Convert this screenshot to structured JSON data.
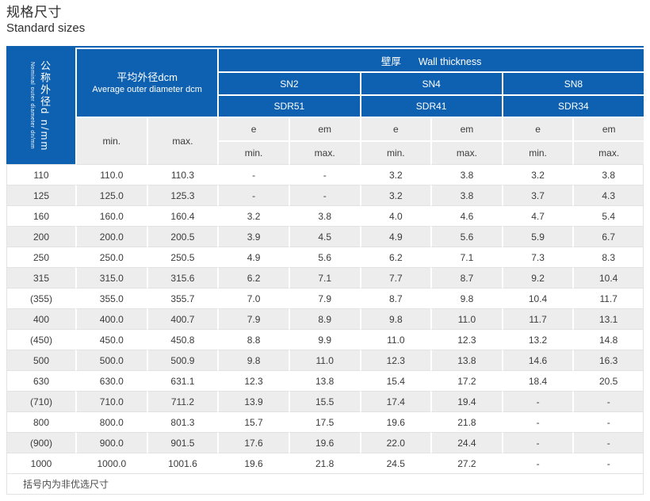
{
  "page": {
    "title_zh": "规格尺寸",
    "title_en": "Standard sizes"
  },
  "colors": {
    "header_blue": "#0e61b0",
    "subheader_gray": "#ededed",
    "row_alt_gray": "#ededed",
    "text_dark": "#3b3b3b"
  },
  "table": {
    "col1_header_zh": "公称外径d n/mm",
    "col1_header_en": "Nominal outer diameter dn/mm",
    "avg_header_zh": "平均外径dcm",
    "avg_header_en": "Average outer diameter dcm",
    "wall_header_zh": "壁厚",
    "wall_header_en": "Wall thickness",
    "sn_groups": [
      {
        "sn": "SN2",
        "sdr": "SDR51"
      },
      {
        "sn": "SN4",
        "sdr": "SDR41"
      },
      {
        "sn": "SN8",
        "sdr": "SDR34"
      }
    ],
    "sub_e": "e",
    "sub_em": "em",
    "min_label": "min.",
    "max_label": "max.",
    "rows": [
      [
        "110",
        "110.0",
        "110.3",
        "-",
        "-",
        "3.2",
        "3.8",
        "3.2",
        "3.8"
      ],
      [
        "125",
        "125.0",
        "125.3",
        "-",
        "-",
        "3.2",
        "3.8",
        "3.7",
        "4.3"
      ],
      [
        "160",
        "160.0",
        "160.4",
        "3.2",
        "3.8",
        "4.0",
        "4.6",
        "4.7",
        "5.4"
      ],
      [
        "200",
        "200.0",
        "200.5",
        "3.9",
        "4.5",
        "4.9",
        "5.6",
        "5.9",
        "6.7"
      ],
      [
        "250",
        "250.0",
        "250.5",
        "4.9",
        "5.6",
        "6.2",
        "7.1",
        "7.3",
        "8.3"
      ],
      [
        "315",
        "315.0",
        "315.6",
        "6.2",
        "7.1",
        "7.7",
        "8.7",
        "9.2",
        "10.4"
      ],
      [
        "(355)",
        "355.0",
        "355.7",
        "7.0",
        "7.9",
        "8.7",
        "9.8",
        "10.4",
        "11.7"
      ],
      [
        "400",
        "400.0",
        "400.7",
        "7.9",
        "8.9",
        "9.8",
        "11.0",
        "11.7",
        "13.1"
      ],
      [
        "(450)",
        "450.0",
        "450.8",
        "8.8",
        "9.9",
        "11.0",
        "12.3",
        "13.2",
        "14.8"
      ],
      [
        "500",
        "500.0",
        "500.9",
        "9.8",
        "11.0",
        "12.3",
        "13.8",
        "14.6",
        "16.3"
      ],
      [
        "630",
        "630.0",
        "631.1",
        "12.3",
        "13.8",
        "15.4",
        "17.2",
        "18.4",
        "20.5"
      ],
      [
        "(710)",
        "710.0",
        "711.2",
        "13.9",
        "15.5",
        "17.4",
        "19.4",
        "-",
        "-"
      ],
      [
        "800",
        "800.0",
        "801.3",
        "15.7",
        "17.5",
        "19.6",
        "21.8",
        "-",
        "-"
      ],
      [
        "(900)",
        "900.0",
        "901.5",
        "17.6",
        "19.6",
        "22.0",
        "24.4",
        "-",
        "-"
      ],
      [
        "1000",
        "1000.0",
        "1001.6",
        "19.6",
        "21.8",
        "24.5",
        "27.2",
        "-",
        "-"
      ]
    ],
    "footnote": "括号内为非优选尺寸"
  }
}
